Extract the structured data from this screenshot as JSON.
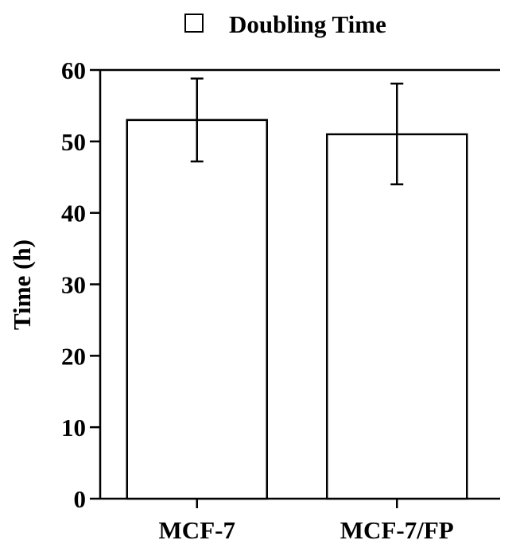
{
  "chart_data": {
    "type": "bar",
    "categories": [
      "MCF-7",
      "MCF-7/FP"
    ],
    "series": [
      {
        "name": "Doubling Time",
        "values": [
          53,
          51
        ],
        "error_low": [
          47.2,
          44.0
        ],
        "error_high": [
          58.8,
          58.1
        ]
      }
    ],
    "ylabel": "Time (h)",
    "xlabel": "",
    "ylim": [
      0,
      60
    ],
    "yticks": [
      0,
      10,
      20,
      30,
      40,
      50,
      60
    ],
    "legend_position": "top",
    "grid": false,
    "bar_fill": "#ffffff",
    "stroke_color": "#000000"
  }
}
